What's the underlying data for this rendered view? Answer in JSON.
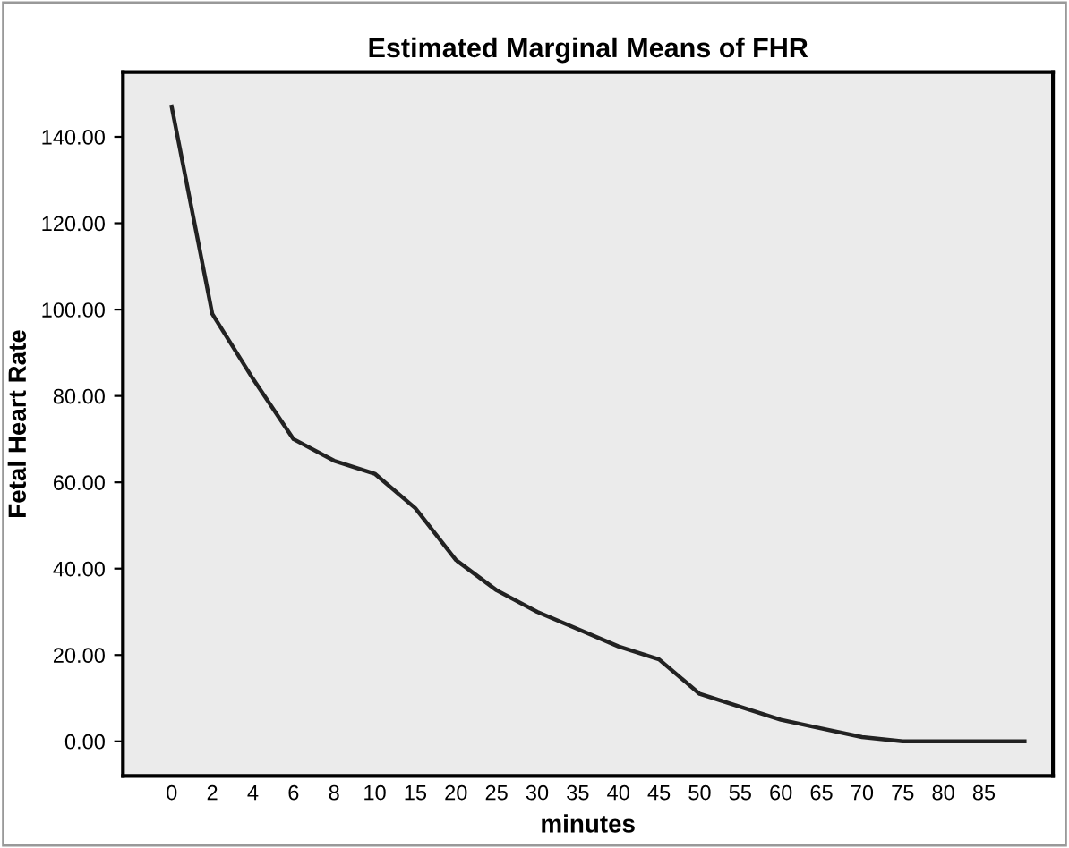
{
  "chart_data": {
    "type": "line",
    "title": "Estimated Marginal Means of FHR",
    "xlabel": "minutes",
    "ylabel": "Fetal Heart Rate",
    "categories": [
      "0",
      "2",
      "4",
      "6",
      "8",
      "10",
      "15",
      "20",
      "25",
      "30",
      "35",
      "40",
      "45",
      "50",
      "55",
      "60",
      "65",
      "70",
      "75",
      "80",
      "85",
      null
    ],
    "series": [
      {
        "color": "#222222",
        "values": [
          147,
          99,
          84,
          70,
          65,
          62,
          54,
          42,
          35,
          30,
          26,
          22,
          19,
          11,
          8,
          5,
          3,
          1,
          0,
          0,
          0,
          0
        ]
      }
    ],
    "ylim": [
      -8,
      155
    ],
    "yticks": [
      {
        "value": 0,
        "label": "0.00"
      },
      {
        "value": 20,
        "label": "20.00"
      },
      {
        "value": 40,
        "label": "40.00"
      },
      {
        "value": 60,
        "label": "60.00"
      },
      {
        "value": 80,
        "label": "80.00"
      },
      {
        "value": 100,
        "label": "100.00"
      },
      {
        "value": 120,
        "label": "120.00"
      },
      {
        "value": 140,
        "label": "140.00"
      }
    ],
    "grid": false,
    "marker": "none",
    "line_style": "solid"
  }
}
